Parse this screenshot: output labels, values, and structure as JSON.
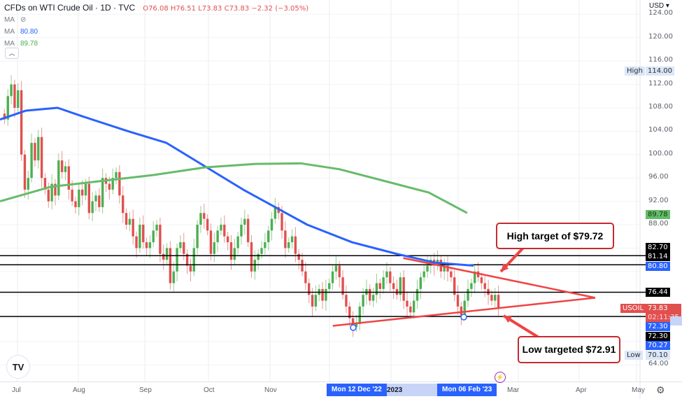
{
  "header": {
    "title": "CFDs on WTI Crude Oil · 1D · TVC",
    "ohlc": "O76.08 H76.51 L73.83 C73.83 −2.32 (−3.05%)",
    "ma_rows": [
      {
        "label": "MA",
        "value": "",
        "hidden_icon": "eye-off-icon"
      },
      {
        "label": "MA",
        "value": "80.80",
        "color": "#2962ff"
      },
      {
        "label": "MA",
        "value": "89.78",
        "color": "#4caf50"
      }
    ],
    "collapse_icon": "chevron-up-icon"
  },
  "axis": {
    "currency": "USD ▾",
    "y_ticks": [
      "124.00",
      "120.00",
      "116.00",
      "112.00",
      "108.00",
      "104.00",
      "100.00",
      "96.00",
      "92.00",
      "88.00",
      "64.00"
    ],
    "x_ticks": [
      "Jul",
      "Aug",
      "Sep",
      "Oct",
      "Nov",
      "2023",
      "Mar",
      "Apr",
      "May"
    ],
    "x_selected": [
      "Mon 12 Dec '22",
      "Mon 06 Feb '23"
    ]
  },
  "price_tags": {
    "high_label": "High",
    "high_value": "114.00",
    "low_label": "Low",
    "low_value": "70.10",
    "ma200": "89.78",
    "line1": "82.70",
    "line2": "81.14",
    "ma100": "80.80",
    "line3": "76.44",
    "symbol": "USOIL",
    "last": "73.83",
    "countdown": "02:11:35",
    "line4a": "72.30",
    "line4b": "72.30",
    "blue2": "70.27"
  },
  "annotations": {
    "high_target": "High target of $79.72",
    "low_target": "Low targeted $72.91"
  },
  "colors": {
    "up": "#4caf50",
    "down": "#e0504f",
    "ma_fast": "#2962ff",
    "ma_slow": "#66bb6a",
    "trend": "#ef4444",
    "accent": "#2962ff"
  },
  "chart_data": {
    "type": "candlestick",
    "title": "CFDs on WTI Crude Oil · 1D · TVC",
    "symbol": "USOIL",
    "ylabel": "USD",
    "ylim": [
      62,
      125
    ],
    "x_ticks": [
      "Jul",
      "Aug",
      "Sep",
      "Oct",
      "Nov",
      "Dec",
      "2023",
      "Feb",
      "Mar",
      "Apr",
      "May"
    ],
    "last": {
      "open": 76.08,
      "high": 76.51,
      "low": 73.83,
      "close": 73.83,
      "change": -2.32,
      "change_pct": -3.05
    },
    "moving_averages": [
      {
        "name": "MA (fast)",
        "value": 80.8,
        "color": "#2962ff",
        "points": [
          [
            0,
            106
          ],
          [
            0.04,
            107.5
          ],
          [
            0.09,
            108
          ],
          [
            0.13,
            106.5
          ],
          [
            0.2,
            104
          ],
          [
            0.26,
            102
          ],
          [
            0.32,
            98
          ],
          [
            0.38,
            94
          ],
          [
            0.43,
            91
          ],
          [
            0.48,
            88
          ],
          [
            0.55,
            85
          ],
          [
            0.62,
            83
          ],
          [
            0.68,
            81.5
          ],
          [
            0.74,
            81
          ]
        ]
      },
      {
        "name": "MA (slow)",
        "value": 89.78,
        "color": "#66bb6a",
        "points": [
          [
            0,
            92
          ],
          [
            0.08,
            94.5
          ],
          [
            0.16,
            95.5
          ],
          [
            0.24,
            96.5
          ],
          [
            0.32,
            97.8
          ],
          [
            0.4,
            98.4
          ],
          [
            0.47,
            98.5
          ],
          [
            0.53,
            97.5
          ],
          [
            0.6,
            95.5
          ],
          [
            0.67,
            93.5
          ],
          [
            0.73,
            90
          ]
        ]
      }
    ],
    "horizontal_levels": [
      82.7,
      81.14,
      76.44,
      72.3
    ],
    "trendlines": [
      {
        "name": "upper",
        "from": [
          0.63,
          82.3
        ],
        "to": [
          0.93,
          75.5
        ]
      },
      {
        "name": "lower",
        "from": [
          0.52,
          70.7
        ],
        "to": [
          0.93,
          75.5
        ]
      }
    ],
    "marked_lows": [
      {
        "date": "Mon 12 Dec '22",
        "price": 70.27
      },
      {
        "date": "Mon 06 Feb '23",
        "price": 72.3
      }
    ],
    "range": {
      "high": 114.0,
      "low": 70.1
    },
    "annotations": [
      "High target of $79.72",
      "Low targeted $72.91"
    ],
    "closes": [
      106,
      110,
      112,
      108,
      111,
      100,
      94,
      96,
      102,
      99,
      103,
      96,
      94,
      92,
      95,
      93,
      99,
      97,
      98,
      94,
      92,
      91,
      94,
      93,
      95,
      90,
      92,
      93,
      91,
      96,
      95,
      94,
      96,
      97,
      93,
      90,
      88,
      89,
      86,
      84,
      88,
      85,
      84,
      85,
      87,
      88,
      83,
      82,
      84,
      78,
      80,
      84,
      85,
      83,
      81,
      80,
      84,
      88,
      90,
      89,
      87,
      83,
      85,
      87,
      88,
      86,
      85,
      82,
      84,
      86,
      88,
      89,
      85,
      80,
      82,
      83,
      84,
      85,
      87,
      89,
      91,
      90,
      87,
      84,
      85,
      86,
      83,
      82,
      80,
      78,
      76,
      74,
      76,
      77,
      75,
      77,
      78,
      80,
      81,
      79,
      76,
      74,
      72,
      70.5,
      71,
      74,
      76,
      77,
      75,
      76,
      78,
      77,
      79,
      80,
      78,
      77,
      76,
      79,
      75,
      74,
      73,
      75,
      77,
      79,
      80,
      81,
      82,
      81,
      82,
      80,
      81,
      80,
      79,
      76,
      74,
      72.5,
      75,
      77,
      78,
      80,
      79,
      78,
      77,
      76,
      75,
      76,
      73.83
    ]
  }
}
